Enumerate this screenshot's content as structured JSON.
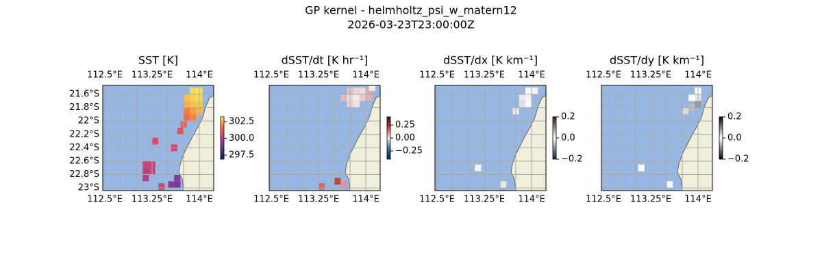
{
  "title": "GP kernel - helmholtz_psi_w_matern12",
  "subtitle": "2026-03-23T23:00:00Z",
  "chart_data": [
    {
      "type": "map",
      "title": "SST [K]",
      "xlim": [
        112.467,
        114.228
      ],
      "ylim": [
        -23.04,
        -21.467
      ],
      "xticks": [
        {
          "value": 112.5,
          "label": "112.5°E"
        },
        {
          "value": 113.25,
          "label": "113.25°E"
        },
        {
          "value": 114,
          "label": "114°E"
        }
      ],
      "yticks": [
        {
          "value": -21.6,
          "label": "21.6°S"
        },
        {
          "value": -21.8,
          "label": "21.8°S"
        },
        {
          "value": -22,
          "label": "22°S"
        },
        {
          "value": -22.2,
          "label": "22.2°S"
        },
        {
          "value": -22.4,
          "label": "22.4°S"
        },
        {
          "value": -22.6,
          "label": "22.6°S"
        },
        {
          "value": -22.8,
          "label": "22.8°S"
        },
        {
          "value": -23,
          "label": "23°S"
        }
      ],
      "xgrid": [
        112.5,
        112.75,
        113,
        113.25,
        113.5,
        113.75,
        114
      ],
      "clim": [
        296.9,
        303.2
      ],
      "cticks": [
        302.5,
        {
          "value": 300,
          "label": "300.0"
        },
        297.5
      ],
      "cmap": [
        "#042333",
        "#3e3187",
        "#8f3f99",
        "#dd4968",
        "#f9843c",
        "#f8f75e"
      ],
      "x": [
        113.9,
        114.0,
        113.8,
        113.9,
        114.0,
        113.8,
        113.9,
        114.0,
        113.8,
        113.9,
        114.0,
        113.8,
        113.9,
        113.75,
        113.7,
        113.6,
        113.3,
        113.15,
        113.25,
        113.15,
        113.25,
        113.15,
        113.55,
        113.65,
        113.65,
        113.4
      ],
      "y": [
        -21.55,
        -21.55,
        -21.65,
        -21.65,
        -21.65,
        -21.75,
        -21.75,
        -21.75,
        -21.85,
        -21.85,
        -21.85,
        -21.95,
        -21.95,
        -22.05,
        -22.15,
        -22.4,
        -22.3,
        -22.65,
        -22.65,
        -22.75,
        -22.75,
        -22.85,
        -22.95,
        -22.95,
        -22.85,
        -22.98
      ],
      "values": [
        302.9,
        303.0,
        302.6,
        302.8,
        302.9,
        302.4,
        302.6,
        302.7,
        301.8,
        302.2,
        302.5,
        301.5,
        301.9,
        301.2,
        300.8,
        300.5,
        300.6,
        300.3,
        300.2,
        300.0,
        300.1,
        299.8,
        299.3,
        299.0,
        299.2,
        300.4
      ]
    },
    {
      "type": "map",
      "title": "dSST/dt [K hr⁻¹]",
      "xlim": [
        112.467,
        114.228
      ],
      "ylim": [
        -23.04,
        -21.467
      ],
      "xticks": [
        {
          "value": 112.5,
          "label": "112.5°E"
        },
        {
          "value": 113.25,
          "label": "113.25°E"
        },
        {
          "value": 114,
          "label": "114°E"
        }
      ],
      "ygrid": [
        -21.6,
        -21.8,
        -22,
        -22.2,
        -22.4,
        -22.6,
        -22.8,
        -23
      ],
      "xgrid": [
        112.5,
        112.75,
        113,
        113.25,
        113.5,
        113.75,
        114
      ],
      "clim": [
        -0.41,
        0.41
      ],
      "cticks": [
        0.25,
        {
          "value": 0,
          "label": "0.00"
        },
        {
          "value": -0.25,
          "label": "−0.25"
        }
      ],
      "cmap": [
        "#181c43",
        "#3b6bb0",
        "#f1ecec",
        "#c0403a",
        "#3c0912"
      ],
      "x": [
        113.75,
        113.85,
        113.95,
        114.05,
        113.65,
        113.75,
        113.85,
        113.95,
        114.05,
        113.75,
        113.85,
        114.1,
        113.55,
        113.65,
        113.3
      ],
      "y": [
        -21.55,
        -21.55,
        -21.55,
        -21.55,
        -21.65,
        -21.65,
        -21.65,
        -21.65,
        -21.65,
        -21.75,
        -21.75,
        -21.5,
        -22.9,
        -22.95,
        -22.98
      ],
      "values": [
        0.05,
        0.03,
        0.02,
        0.08,
        0.06,
        0.02,
        0.0,
        0.04,
        0.07,
        0.03,
        0.01,
        0.0,
        0.2,
        0.1,
        0.15
      ]
    },
    {
      "type": "map",
      "title": "dSST/dx [K km⁻¹]",
      "xlim": [
        112.467,
        114.228
      ],
      "ylim": [
        -23.04,
        -21.467
      ],
      "xticks": [
        {
          "value": 112.5,
          "label": "112.5°E"
        },
        {
          "value": 113.25,
          "label": "113.25°E"
        },
        {
          "value": 114,
          "label": "114°E"
        }
      ],
      "ygrid": [
        -21.6,
        -21.8,
        -22,
        -22.2,
        -22.4,
        -22.6,
        -22.8,
        -23
      ],
      "xgrid": [
        112.5,
        112.75,
        113,
        113.25,
        113.5,
        113.75,
        114
      ],
      "clim": [
        -0.2,
        0.2
      ],
      "cticks": [
        0.2,
        {
          "value": 0,
          "label": "0.0"
        },
        {
          "value": -0.2,
          "label": "−0.2"
        }
      ],
      "cmap": [
        "#0b1a33",
        "#ffffff",
        "#3a1a08"
      ],
      "x": [
        113.95,
        114.05,
        113.85,
        113.95,
        113.85,
        113.95,
        113.75,
        113.15,
        113.55
      ],
      "y": [
        -21.55,
        -21.55,
        -21.65,
        -21.65,
        -21.75,
        -21.75,
        -21.85,
        -22.7,
        -22.95
      ],
      "values": [
        0.0,
        0.01,
        0.02,
        -0.01,
        0.03,
        0.0,
        0.02,
        0.01,
        0.02
      ]
    },
    {
      "type": "map",
      "title": "dSST/dy [K km⁻¹]",
      "xlim": [
        112.467,
        114.228
      ],
      "ylim": [
        -23.04,
        -21.467
      ],
      "xticks": [
        {
          "value": 112.5,
          "label": "112.5°E"
        },
        {
          "value": 113.25,
          "label": "113.25°E"
        },
        {
          "value": 114,
          "label": "114°E"
        }
      ],
      "ygrid": [
        -21.6,
        -21.8,
        -22,
        -22.2,
        -22.4,
        -22.6,
        -22.8,
        -23
      ],
      "xgrid": [
        112.5,
        112.75,
        113,
        113.25,
        113.5,
        113.75,
        114
      ],
      "clim": [
        -0.2,
        0.2
      ],
      "cticks": [
        0.2,
        {
          "value": 0,
          "label": "0.0"
        },
        {
          "value": -0.2,
          "label": "−0.2"
        }
      ],
      "cmap": [
        "#000000",
        "#ffffff",
        "#000000"
      ],
      "x": [
        114.0,
        113.9,
        114.0,
        113.8,
        113.9,
        114.0,
        113.1,
        113.55
      ],
      "y": [
        -21.55,
        -21.65,
        -21.75,
        -21.85,
        -21.8,
        -21.65,
        -22.7,
        -22.95
      ],
      "values": [
        0.0,
        0.0,
        -0.08,
        -0.03,
        -0.05,
        -0.02,
        0.0,
        0.0
      ]
    }
  ]
}
